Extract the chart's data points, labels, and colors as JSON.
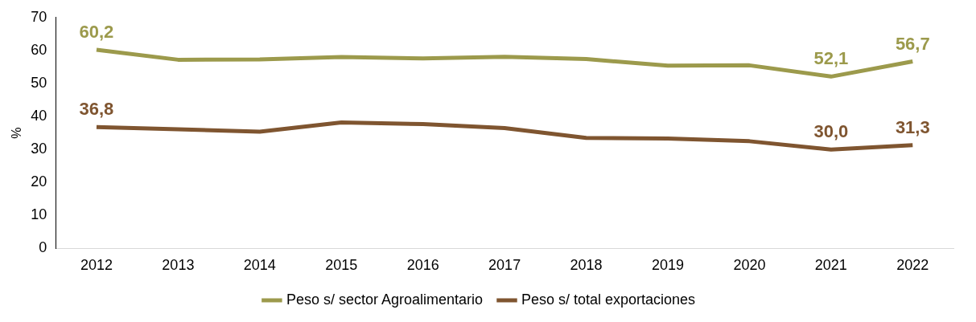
{
  "chart_data": {
    "type": "line",
    "ylabel": "%",
    "categories": [
      "2012",
      "2013",
      "2014",
      "2015",
      "2016",
      "2017",
      "2018",
      "2019",
      "2020",
      "2021",
      "2022"
    ],
    "series": [
      {
        "name": "Peso s/ sector Agroalimentario",
        "color": "#9c9a4c",
        "values": [
          60.2,
          57.2,
          57.3,
          58.0,
          57.6,
          58.1,
          57.4,
          55.4,
          55.5,
          52.1,
          56.7
        ],
        "value_labels": [
          "60,2",
          null,
          null,
          null,
          null,
          null,
          null,
          null,
          null,
          "52,1",
          "56,7"
        ]
      },
      {
        "name": "Peso s/ total exportaciones",
        "color": "#7f5530",
        "values": [
          36.8,
          36.1,
          35.4,
          38.2,
          37.7,
          36.5,
          33.5,
          33.3,
          32.5,
          30.0,
          31.3
        ],
        "value_labels": [
          "36,8",
          null,
          null,
          null,
          null,
          null,
          null,
          null,
          null,
          "30,0",
          "31,3"
        ]
      }
    ],
    "ylim": [
      0,
      70
    ],
    "yticks": [
      0,
      10,
      20,
      30,
      40,
      50,
      60,
      70
    ],
    "grid": false,
    "legend": "bottom",
    "marker": "none",
    "line_style": "solid"
  }
}
